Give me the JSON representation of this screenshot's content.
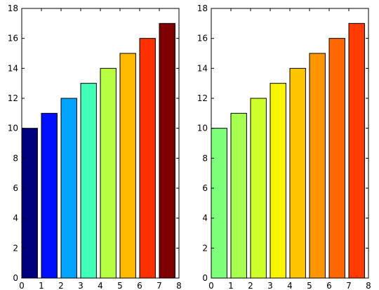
{
  "chart_data": [
    {
      "type": "bar",
      "x": [
        0,
        1,
        2,
        3,
        4,
        5,
        6,
        7
      ],
      "values": [
        10,
        11,
        12,
        13,
        14,
        15,
        16,
        17
      ],
      "bar_colors": [
        "#00007f",
        "#0010ff",
        "#00a4ff",
        "#40ffb7",
        "#b7ff40",
        "#ffb900",
        "#ff3000",
        "#7f0000"
      ],
      "xlim": [
        0,
        8
      ],
      "ylim": [
        0,
        18
      ],
      "xticks": [
        0,
        1,
        2,
        3,
        4,
        5,
        6,
        7,
        8
      ],
      "yticks": [
        0,
        2,
        4,
        6,
        8,
        10,
        12,
        14,
        16,
        18
      ],
      "grid": false,
      "title": "",
      "xlabel": "",
      "ylabel": ""
    },
    {
      "type": "bar",
      "x": [
        0,
        1,
        2,
        3,
        4,
        5,
        6,
        7
      ],
      "values": [
        10,
        11,
        12,
        13,
        14,
        15,
        16,
        17
      ],
      "bar_colors": [
        "#7dff7a",
        "#a7ff50",
        "#cfff28",
        "#f8f500",
        "#ffc400",
        "#ff9500",
        "#ff6800",
        "#ff3b00"
      ],
      "xlim": [
        0,
        8
      ],
      "ylim": [
        0,
        18
      ],
      "xticks": [
        0,
        1,
        2,
        3,
        4,
        5,
        6,
        7,
        8
      ],
      "yticks": [
        0,
        2,
        4,
        6,
        8,
        10,
        12,
        14,
        16,
        18
      ],
      "grid": false,
      "title": "",
      "xlabel": "",
      "ylabel": ""
    }
  ]
}
